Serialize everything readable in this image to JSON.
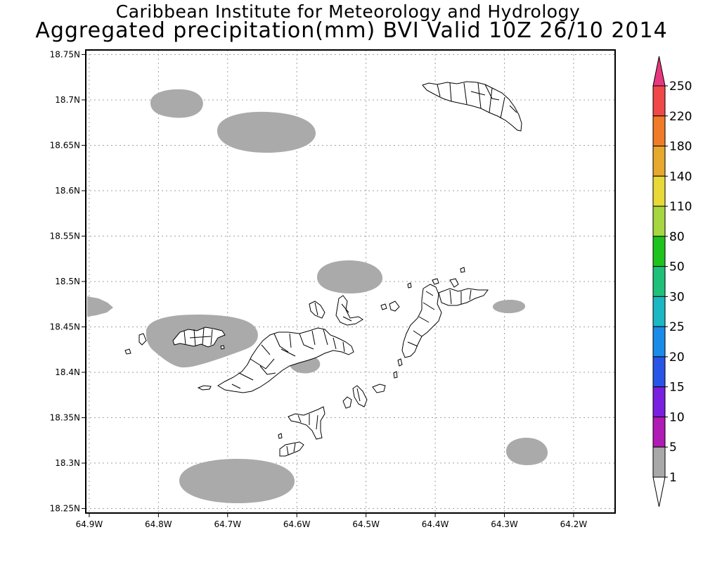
{
  "title_line1": "Caribbean Institute for Meteorology and Hydrology",
  "title_line2": "Aggregated precipitation(mm) BVI Valid 10Z 26/10 2014",
  "map": {
    "lat_ticks": [
      "18.75N",
      "18.7N",
      "18.65N",
      "18.6N",
      "18.55N",
      "18.5N",
      "18.45N",
      "18.4N",
      "18.35N",
      "18.3N",
      "18.25N"
    ],
    "lon_ticks": [
      "64.9W",
      "64.8W",
      "64.7W",
      "64.6W",
      "64.5W",
      "64.4W",
      "64.3W",
      "64.2W"
    ],
    "lat_values": [
      18.75,
      18.7,
      18.65,
      18.6,
      18.55,
      18.5,
      18.45,
      18.4,
      18.35,
      18.3,
      18.25
    ],
    "lon_values": [
      -64.9,
      -64.8,
      -64.7,
      -64.6,
      -64.5,
      -64.4,
      -64.3,
      -64.2
    ],
    "lon_range": [
      -64.905,
      -64.14
    ],
    "lat_range": [
      18.245,
      18.755
    ],
    "gridlines": true,
    "precip_areas": [
      {
        "name": "precip-area-nw-small",
        "lon": -64.777,
        "lat": 18.72,
        "category": "1-5"
      },
      {
        "name": "precip-area-north-center",
        "lon": -64.654,
        "lat": 18.69,
        "category": "1-5"
      },
      {
        "name": "precip-area-west-edge",
        "lon": -64.905,
        "lat": 18.476,
        "category": "1-5"
      },
      {
        "name": "precip-area-st-thomas",
        "lon": -64.73,
        "lat": 18.448,
        "category": "1-5"
      },
      {
        "name": "precip-area-central-north",
        "lon": -64.52,
        "lat": 18.518,
        "category": "1-5"
      },
      {
        "name": "precip-area-tortola-south",
        "lon": -64.597,
        "lat": 18.416,
        "category": "1-5"
      },
      {
        "name": "precip-area-east",
        "lon": -64.296,
        "lat": 18.48,
        "category": "1-5"
      },
      {
        "name": "precip-area-southeast",
        "lon": -64.265,
        "lat": 18.313,
        "category": "1-5"
      },
      {
        "name": "precip-area-south",
        "lon": -64.68,
        "lat": 18.278,
        "category": "1-5"
      }
    ],
    "islands": [
      "anegada",
      "st-thomas",
      "tortola",
      "virgin-gorda",
      "jost-van-dyke",
      "norman-island",
      "peter-island",
      "cooper-island",
      "guana-island",
      "great-camanoe",
      "scrub-island",
      "salt-island"
    ]
  },
  "colorbar": {
    "labels": [
      "250",
      "220",
      "180",
      "140",
      "110",
      "80",
      "50",
      "30",
      "25",
      "20",
      "15",
      "10",
      "5",
      "1"
    ],
    "colors": [
      "#e8377f",
      "#f04848",
      "#f07b28",
      "#e6a82d",
      "#e8d838",
      "#a6d640",
      "#1ec31e",
      "#1fc07a",
      "#1bb8c4",
      "#1a8ce8",
      "#2855e6",
      "#7a1fe0",
      "#b01ab5",
      "#a8a8a8",
      "#ffffff"
    ]
  }
}
